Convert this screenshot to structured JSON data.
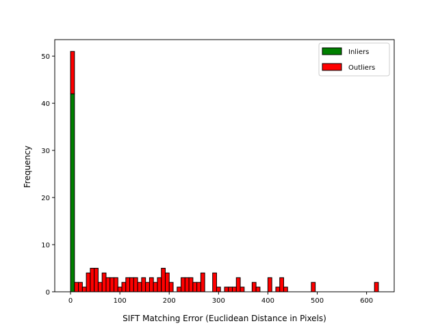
{
  "chart_data": {
    "type": "bar",
    "stacked": true,
    "bin_width": 8.0,
    "x_bins_start": [
      0,
      8,
      16,
      24,
      32,
      40,
      48,
      56,
      64,
      72,
      80,
      88,
      96,
      104,
      112,
      120,
      128,
      136,
      144,
      152,
      160,
      168,
      176,
      184,
      192,
      200,
      208,
      216,
      224,
      232,
      240,
      248,
      256,
      264,
      272,
      280,
      288,
      296,
      304,
      312,
      320,
      328,
      336,
      344,
      352,
      360,
      368,
      376,
      384,
      392,
      400,
      408,
      416,
      424,
      432,
      440,
      448,
      456,
      464,
      472,
      480,
      488,
      496,
      504,
      512,
      520,
      528,
      536,
      544,
      552,
      560,
      568,
      576,
      584,
      592,
      600,
      608,
      616
    ],
    "series": [
      {
        "name": "Inliers",
        "color": "#008000",
        "values": [
          42,
          0,
          0,
          0,
          0,
          0,
          0,
          0,
          0,
          0,
          0,
          0,
          0,
          0,
          0,
          0,
          0,
          0,
          0,
          0,
          0,
          0,
          0,
          0,
          0,
          0,
          0,
          0,
          0,
          0,
          0,
          0,
          0,
          0,
          0,
          0,
          0,
          0,
          0,
          0,
          0,
          0,
          0,
          0,
          0,
          0,
          0,
          0,
          0,
          0,
          0,
          0,
          0,
          0,
          0,
          0,
          0,
          0,
          0,
          0,
          0,
          0,
          0,
          0,
          0,
          0,
          0,
          0,
          0,
          0,
          0,
          0,
          0,
          0,
          0,
          0,
          0,
          0
        ]
      },
      {
        "name": "Outliers",
        "color": "#ff0000",
        "values": [
          9,
          2,
          2,
          1,
          4,
          5,
          5,
          2,
          4,
          3,
          3,
          3,
          1,
          2,
          3,
          3,
          3,
          2,
          3,
          2,
          3,
          2,
          3,
          5,
          4,
          2,
          0,
          1,
          3,
          3,
          3,
          2,
          2,
          4,
          0,
          0,
          4,
          1,
          0,
          1,
          1,
          1,
          3,
          1,
          0,
          0,
          2,
          1,
          0,
          0,
          3,
          0,
          1,
          3,
          1,
          0,
          0,
          0,
          0,
          0,
          0,
          2,
          0,
          0,
          0,
          0,
          0,
          0,
          0,
          0,
          0,
          0,
          0,
          0,
          0,
          0,
          0,
          2
        ]
      }
    ],
    "xlabel": "SIFT Matching Error (Euclidean Distance in Pixels)",
    "ylabel": "Frequency",
    "xlim": [
      -32,
      656
    ],
    "ylim": [
      0,
      53.5
    ],
    "xticks": [
      0,
      100,
      200,
      300,
      400,
      500,
      600
    ],
    "yticks": [
      0,
      10,
      20,
      30,
      40,
      50
    ],
    "grid": false,
    "legend_position": "top-right"
  }
}
